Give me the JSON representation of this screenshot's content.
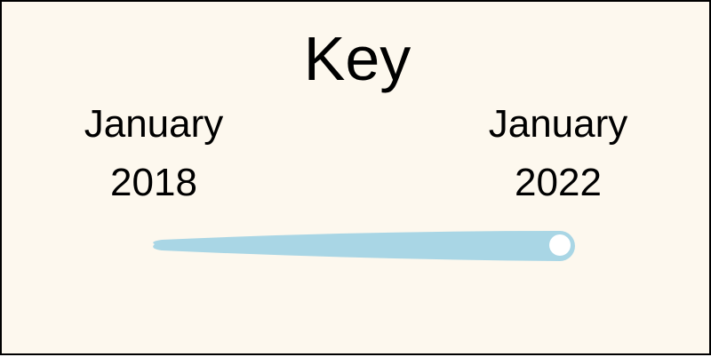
{
  "key": {
    "title": "Key",
    "start": {
      "month": "January",
      "year": "2018"
    },
    "end": {
      "month": "January",
      "year": "2022"
    },
    "colors": {
      "background": "#fdf8ee",
      "trail": "#a9d6e5",
      "dot": "#ffffff"
    }
  }
}
